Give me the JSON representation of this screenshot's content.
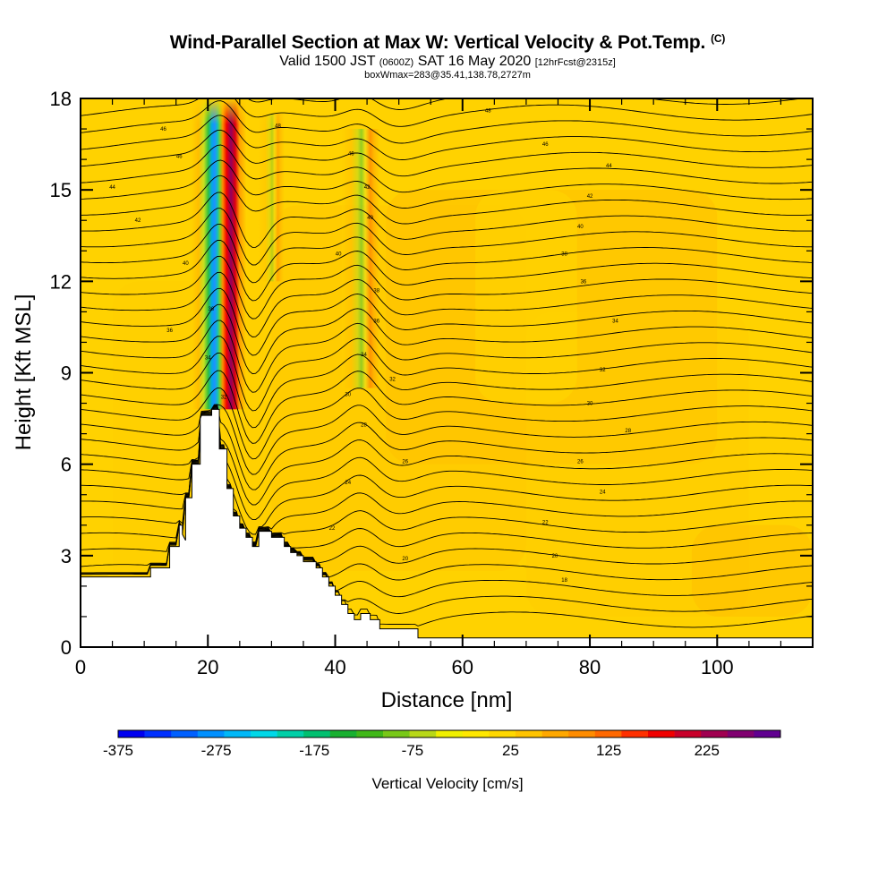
{
  "header": {
    "title": "Wind-Parallel Section at Max W: Vertical Velocity & Pot.Temp.",
    "copyright": "(C)",
    "valid_prefix": "Valid 1500 JST",
    "valid_utc": "(0600Z)",
    "valid_date": "SAT 16 May 2020",
    "forecast": "[12hrFcst@2315z]",
    "box_info": "boxWmax=283@35.41,138.78,2727m"
  },
  "chart_data": {
    "type": "heatmap",
    "title": "Wind-Parallel Section at Max W: Vertical Velocity & Pot.Temp.",
    "xlabel": "Distance [nm]",
    "ylabel": "Height [Kft MSL]",
    "xlim": [
      0,
      115
    ],
    "ylim": [
      0,
      18
    ],
    "x_ticks": [
      "0",
      "20",
      "40",
      "60",
      "80",
      "100"
    ],
    "y_ticks": [
      "0",
      "3",
      "6",
      "9",
      "12",
      "15",
      "18"
    ],
    "x_tick_values": [
      0,
      20,
      40,
      60,
      80,
      100
    ],
    "y_tick_values": [
      0,
      3,
      6,
      9,
      12,
      15,
      18
    ],
    "colorbar": {
      "label": "Vertical Velocity [cm/s]",
      "range": [
        -375,
        300
      ],
      "tick_labels": [
        "-375",
        "-275",
        "-175",
        "-75",
        "25",
        "125",
        "225"
      ],
      "tick_values": [
        -375,
        -275,
        -175,
        -75,
        25,
        125,
        225
      ],
      "colors": [
        "#0000f0",
        "#0030ff",
        "#0060ff",
        "#0090ff",
        "#00b8f8",
        "#00d8e8",
        "#00d0a8",
        "#00c070",
        "#18b030",
        "#40b818",
        "#78c818",
        "#b8d818",
        "#f0f000",
        "#ffe800",
        "#ffd800",
        "#ffc400",
        "#ffa800",
        "#ff8c00",
        "#ff6800",
        "#ff3000",
        "#f00000",
        "#c8002a",
        "#a00050",
        "#800070",
        "#600090"
      ]
    },
    "features": [
      {
        "name": "updraft core",
        "x": 23,
        "y_range": [
          7.8,
          17.5
        ],
        "max_w": 283
      },
      {
        "name": "downdraft core",
        "x": 21,
        "y_range": [
          7.8,
          16
        ],
        "min_w": -375
      }
    ],
    "theta_contour_labels": [
      {
        "x": 13,
        "y": 17.0,
        "v": "46"
      },
      {
        "x": 31,
        "y": 17.1,
        "v": "48"
      },
      {
        "x": 64,
        "y": 17.6,
        "v": "48"
      },
      {
        "x": 15.5,
        "y": 16.1,
        "v": "46"
      },
      {
        "x": 42.5,
        "y": 16.2,
        "v": "46"
      },
      {
        "x": 73,
        "y": 16.5,
        "v": "46"
      },
      {
        "x": 83,
        "y": 15.8,
        "v": "44"
      },
      {
        "x": 5,
        "y": 15.1,
        "v": "44"
      },
      {
        "x": 45,
        "y": 15.1,
        "v": "42"
      },
      {
        "x": 80,
        "y": 14.8,
        "v": "42"
      },
      {
        "x": 9,
        "y": 14.0,
        "v": "42"
      },
      {
        "x": 45.5,
        "y": 14.1,
        "v": "40"
      },
      {
        "x": 78.5,
        "y": 13.8,
        "v": "40"
      },
      {
        "x": 16.5,
        "y": 12.6,
        "v": "40"
      },
      {
        "x": 40.5,
        "y": 12.9,
        "v": "40"
      },
      {
        "x": 76,
        "y": 12.9,
        "v": "38"
      },
      {
        "x": 79,
        "y": 12.0,
        "v": "36"
      },
      {
        "x": 46.5,
        "y": 11.7,
        "v": "38"
      },
      {
        "x": 20.5,
        "y": 11.1,
        "v": "36"
      },
      {
        "x": 46.5,
        "y": 10.7,
        "v": "36"
      },
      {
        "x": 84,
        "y": 10.7,
        "v": "34"
      },
      {
        "x": 14,
        "y": 10.4,
        "v": "36"
      },
      {
        "x": 20,
        "y": 9.5,
        "v": "34"
      },
      {
        "x": 44.5,
        "y": 9.6,
        "v": "34"
      },
      {
        "x": 82,
        "y": 9.1,
        "v": "32"
      },
      {
        "x": 49,
        "y": 8.8,
        "v": "32"
      },
      {
        "x": 42,
        "y": 8.3,
        "v": "30"
      },
      {
        "x": 22.5,
        "y": 8.2,
        "v": "32"
      },
      {
        "x": 80,
        "y": 8.0,
        "v": "30"
      },
      {
        "x": 44.5,
        "y": 7.3,
        "v": "28"
      },
      {
        "x": 86,
        "y": 7.1,
        "v": "28"
      },
      {
        "x": 51,
        "y": 6.1,
        "v": "26"
      },
      {
        "x": 78.5,
        "y": 6.1,
        "v": "26"
      },
      {
        "x": 42,
        "y": 5.4,
        "v": "24"
      },
      {
        "x": 82,
        "y": 5.1,
        "v": "24"
      },
      {
        "x": 39.5,
        "y": 3.9,
        "v": "22"
      },
      {
        "x": 73,
        "y": 4.1,
        "v": "22"
      },
      {
        "x": 51,
        "y": 2.9,
        "v": "20"
      },
      {
        "x": 74.5,
        "y": 3.0,
        "v": "20"
      },
      {
        "x": 76,
        "y": 2.2,
        "v": "18"
      }
    ],
    "terrain_kft": [
      [
        0,
        2.3
      ],
      [
        11,
        2.3
      ],
      [
        11,
        2.6
      ],
      [
        14,
        2.6
      ],
      [
        14,
        3.3
      ],
      [
        15.5,
        3.3
      ],
      [
        15.5,
        4.0
      ],
      [
        16,
        4.0
      ],
      [
        16,
        3.7
      ],
      [
        16.5,
        3.5
      ],
      [
        16.5,
        4.9
      ],
      [
        17.5,
        4.9
      ],
      [
        17.5,
        6.0
      ],
      [
        18.8,
        6.0
      ],
      [
        18.8,
        7.5
      ],
      [
        19,
        7.6
      ],
      [
        20.6,
        7.6
      ],
      [
        20.6,
        7.8
      ],
      [
        21.8,
        7.8
      ],
      [
        21.8,
        6.5
      ],
      [
        23,
        6.5
      ],
      [
        23,
        5.2
      ],
      [
        24,
        5.2
      ],
      [
        24,
        4.3
      ],
      [
        25,
        4.3
      ],
      [
        25,
        3.9
      ],
      [
        26,
        3.9
      ],
      [
        26,
        3.6
      ],
      [
        27,
        3.6
      ],
      [
        27,
        3.3
      ],
      [
        28,
        3.3
      ],
      [
        28,
        3.8
      ],
      [
        30,
        3.8
      ],
      [
        30,
        3.6
      ],
      [
        32,
        3.6
      ],
      [
        32,
        3.3
      ],
      [
        33,
        3.3
      ],
      [
        33,
        3.1
      ],
      [
        34,
        3.1
      ],
      [
        34,
        3.0
      ],
      [
        35,
        3.0
      ],
      [
        35,
        2.8
      ],
      [
        37,
        2.8
      ],
      [
        37,
        2.6
      ],
      [
        38,
        2.6
      ],
      [
        38,
        2.3
      ],
      [
        39,
        2.3
      ],
      [
        39,
        2.0
      ],
      [
        40,
        2.0
      ],
      [
        40,
        1.7
      ],
      [
        41,
        1.7
      ],
      [
        41,
        1.4
      ],
      [
        42,
        1.4
      ],
      [
        42,
        1.1
      ],
      [
        43,
        1.1
      ],
      [
        43,
        0.9
      ],
      [
        44,
        0.9
      ],
      [
        44,
        1.1
      ],
      [
        45.5,
        1.1
      ],
      [
        45.5,
        0.9
      ],
      [
        47,
        0.9
      ],
      [
        47,
        0.6
      ],
      [
        53,
        0.6
      ],
      [
        53,
        0.3
      ],
      [
        60,
        0.3
      ],
      [
        115,
        0.3
      ],
      [
        115,
        0
      ]
    ]
  }
}
